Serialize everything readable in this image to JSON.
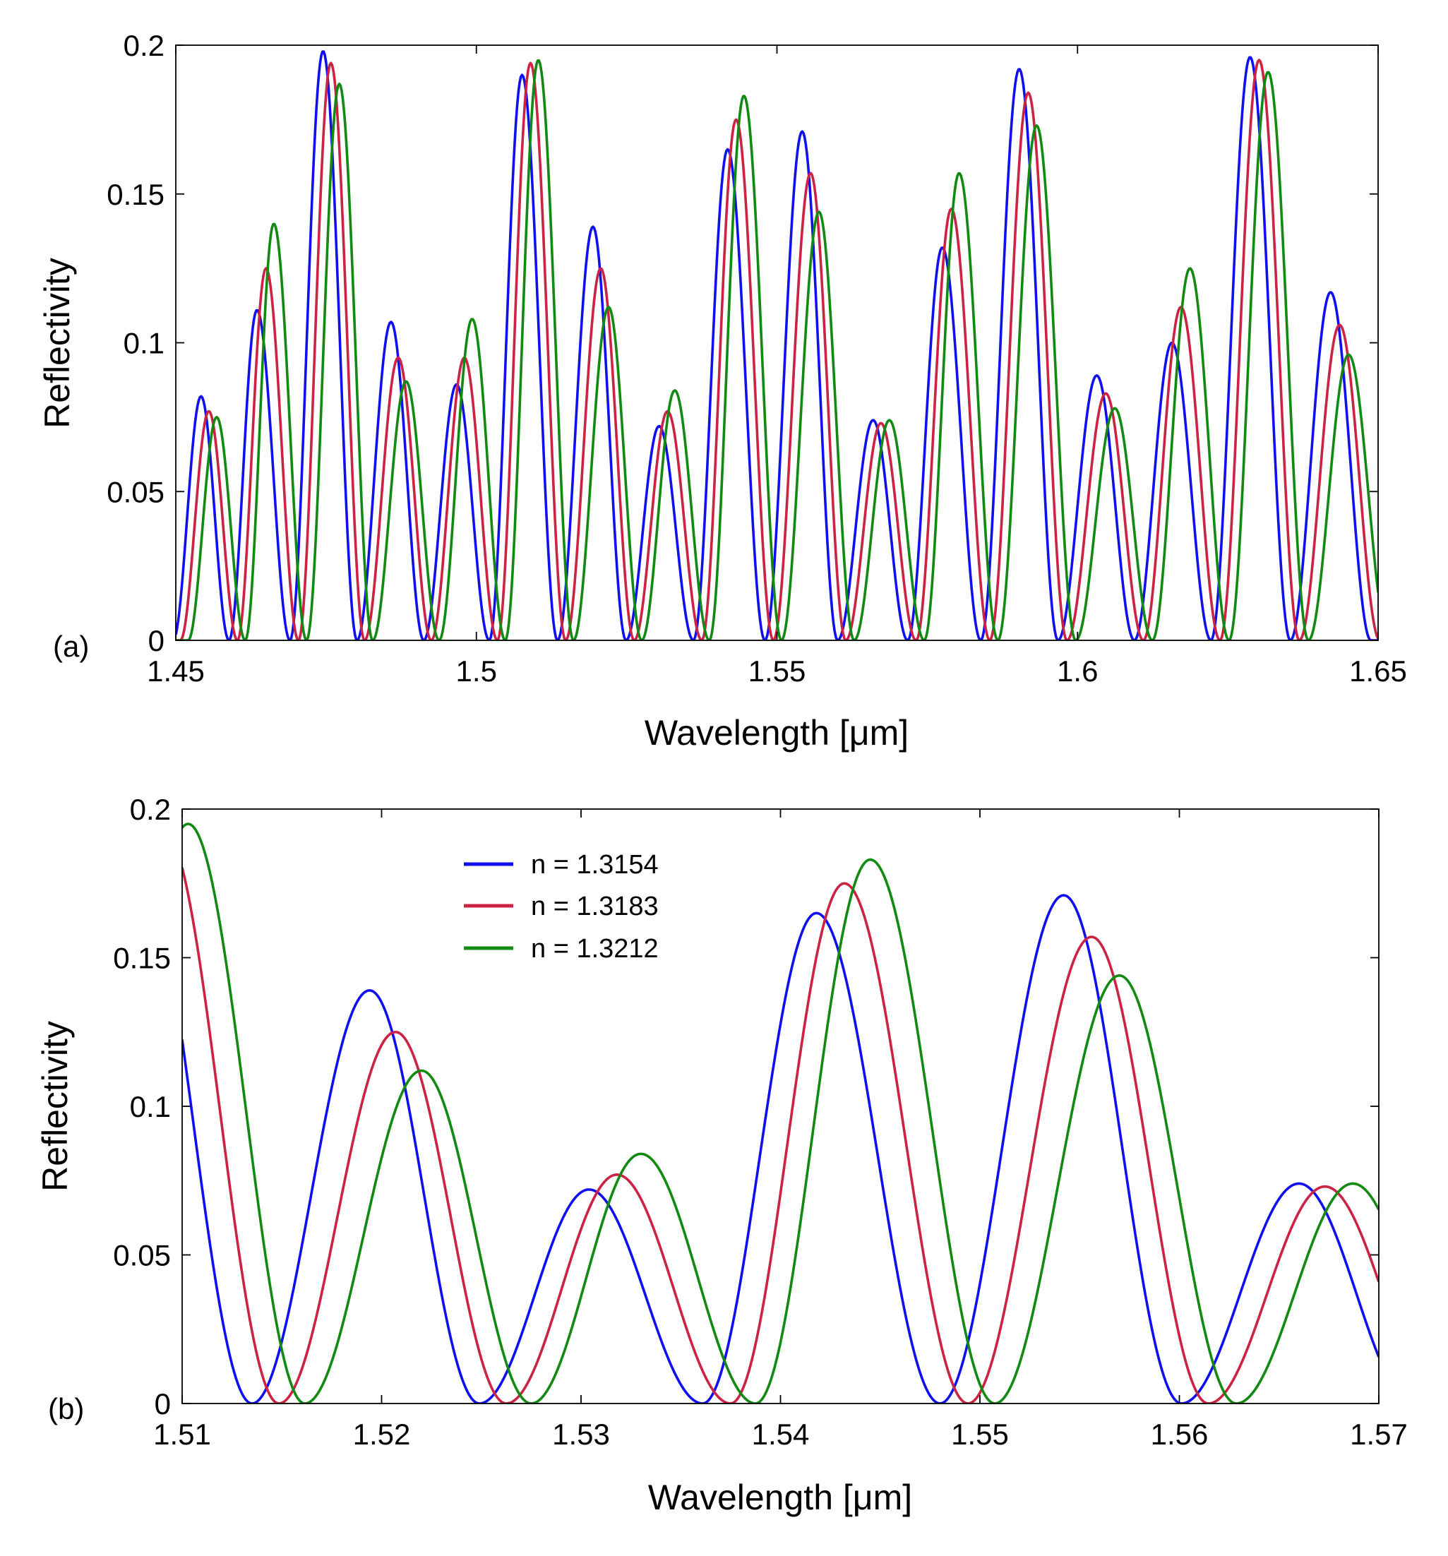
{
  "chart_data": [
    {
      "panel": "(a)",
      "type": "line",
      "xlabel": "Wavelength [μm]",
      "ylabel": "Reflectivity",
      "xlim": [
        1.45,
        1.65
      ],
      "ylim": [
        0,
        0.2
      ],
      "xticks": [
        1.45,
        1.5,
        1.55,
        1.6,
        1.65
      ],
      "xtick_labels": [
        "1.45",
        "1.5",
        "1.55",
        "1.6",
        "1.65"
      ],
      "yticks": [
        0,
        0.05,
        0.1,
        0.15,
        0.2
      ],
      "ytick_labels": [
        "0",
        "0.05",
        "0.1",
        "0.15",
        "0.2"
      ],
      "grid": false,
      "series": [
        {
          "name": "n = 1.3154",
          "color": "#1010ee",
          "sample_step": 0.0002,
          "peaks": [
            [
              1.4542,
              0.082
            ],
            [
              1.4635,
              0.111
            ],
            [
              1.4745,
              0.198
            ],
            [
              1.4858,
              0.107
            ],
            [
              1.4967,
              0.086
            ],
            [
              1.5076,
              0.19
            ],
            [
              1.5194,
              0.139
            ],
            [
              1.5304,
              0.072
            ],
            [
              1.5418,
              0.165
            ],
            [
              1.5542,
              0.171
            ],
            [
              1.566,
              0.074
            ],
            [
              1.5775,
              0.132
            ],
            [
              1.5903,
              0.192
            ],
            [
              1.6032,
              0.089
            ],
            [
              1.6157,
              0.1
            ],
            [
              1.6287,
              0.196
            ],
            [
              1.6421,
              0.117
            ]
          ]
        },
        {
          "name": "n = 1.3183",
          "color": "#cc2244",
          "sample_step": 0.0002,
          "peaks": [
            [
              1.4555,
              0.077
            ],
            [
              1.465,
              0.125
            ],
            [
              1.4758,
              0.194
            ],
            [
              1.487,
              0.095
            ],
            [
              1.498,
              0.095
            ],
            [
              1.509,
              0.194
            ],
            [
              1.5207,
              0.125
            ],
            [
              1.5318,
              0.077
            ],
            [
              1.5432,
              0.175
            ],
            [
              1.5556,
              0.157
            ],
            [
              1.5673,
              0.073
            ],
            [
              1.579,
              0.145
            ],
            [
              1.5918,
              0.184
            ],
            [
              1.6047,
              0.083
            ],
            [
              1.6172,
              0.112
            ],
            [
              1.6302,
              0.195
            ],
            [
              1.6436,
              0.106
            ]
          ]
        },
        {
          "name": "n = 1.3212",
          "color": "#128a12",
          "sample_step": 0.0002,
          "peaks": [
            [
              1.4568,
              0.075
            ],
            [
              1.4663,
              0.14
            ],
            [
              1.4772,
              0.187
            ],
            [
              1.4883,
              0.087
            ],
            [
              1.4993,
              0.108
            ],
            [
              1.5103,
              0.195
            ],
            [
              1.522,
              0.112
            ],
            [
              1.533,
              0.084
            ],
            [
              1.5445,
              0.183
            ],
            [
              1.557,
              0.144
            ],
            [
              1.5687,
              0.074
            ],
            [
              1.5803,
              0.157
            ],
            [
              1.5932,
              0.173
            ],
            [
              1.6062,
              0.078
            ],
            [
              1.6187,
              0.125
            ],
            [
              1.6317,
              0.191
            ],
            [
              1.6451,
              0.096
            ]
          ]
        }
      ]
    },
    {
      "panel": "(b)",
      "type": "line",
      "xlabel": "Wavelength [μm]",
      "ylabel": "Reflectivity",
      "xlim": [
        1.51,
        1.57
      ],
      "ylim": [
        0,
        0.2
      ],
      "xticks": [
        1.51,
        1.52,
        1.53,
        1.54,
        1.55,
        1.56,
        1.57
      ],
      "xtick_labels": [
        "1.51",
        "1.52",
        "1.53",
        "1.54",
        "1.55",
        "1.56",
        "1.57"
      ],
      "yticks": [
        0,
        0.05,
        0.1,
        0.15,
        0.2
      ],
      "ytick_labels": [
        "0",
        "0.05",
        "0.1",
        "0.15",
        "0.2"
      ],
      "grid": false,
      "legend": {
        "placement": "top-left"
      },
      "series": [
        {
          "name": "n = 1.3154",
          "color": "#1010ee",
          "sample_step": 0.0001,
          "peaks": [
            [
              1.5076,
              0.19
            ],
            [
              1.5194,
              0.139
            ],
            [
              1.5304,
              0.072
            ],
            [
              1.5418,
              0.165
            ],
            [
              1.5542,
              0.171
            ],
            [
              1.566,
              0.074
            ],
            [
              1.5775,
              0.132
            ]
          ]
        },
        {
          "name": "n = 1.3183",
          "color": "#cc2244",
          "sample_step": 0.0001,
          "peaks": [
            [
              1.509,
              0.194
            ],
            [
              1.5207,
              0.125
            ],
            [
              1.5318,
              0.077
            ],
            [
              1.5432,
              0.175
            ],
            [
              1.5556,
              0.157
            ],
            [
              1.5673,
              0.073
            ],
            [
              1.579,
              0.145
            ]
          ]
        },
        {
          "name": "n = 1.3212",
          "color": "#128a12",
          "sample_step": 0.0001,
          "peaks": [
            [
              1.5103,
              0.195
            ],
            [
              1.522,
              0.112
            ],
            [
              1.533,
              0.084
            ],
            [
              1.5445,
              0.183
            ],
            [
              1.557,
              0.144
            ],
            [
              1.5687,
              0.074
            ],
            [
              1.5803,
              0.157
            ]
          ]
        }
      ]
    }
  ]
}
